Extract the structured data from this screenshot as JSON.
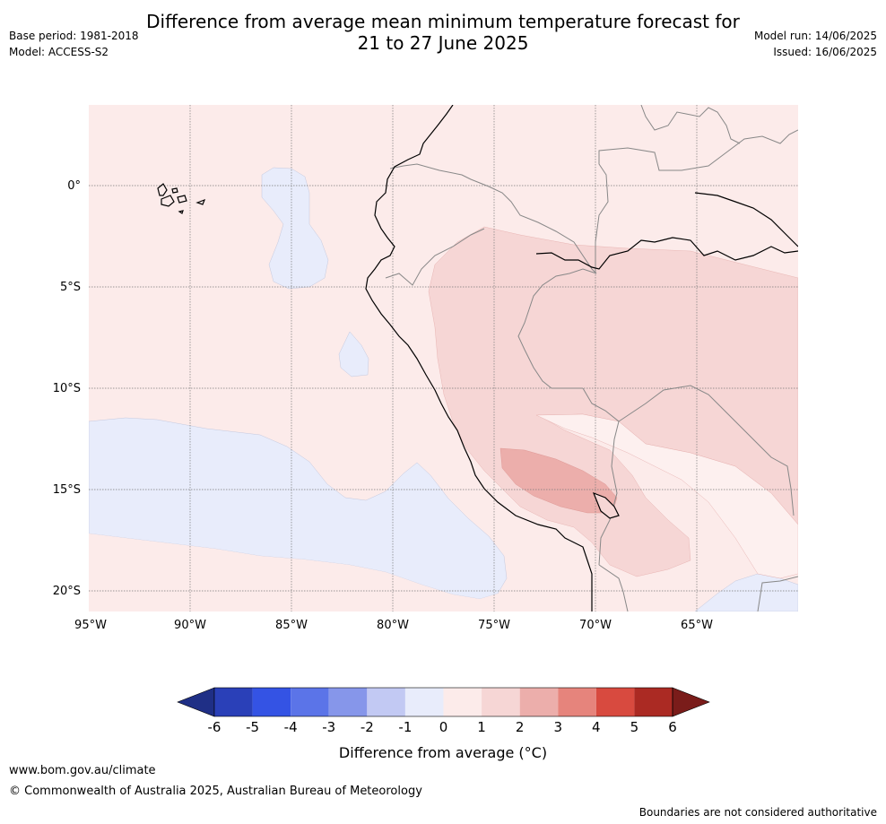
{
  "header": {
    "title_line1": "Difference from average mean minimum temperature forecast for",
    "title_line2": "21 to 27 June 2025",
    "base_period": "Base period: 1981-2018",
    "model": "Model: ACCESS-S2",
    "model_run": "Model run: 14/06/2025",
    "issued": "Issued: 16/06/2025"
  },
  "map": {
    "lat_labels": [
      "0°",
      "5°S",
      "10°S",
      "15°S",
      "20°S"
    ],
    "lon_labels": [
      "95°W",
      "90°W",
      "85°W",
      "80°W",
      "75°W",
      "70°W",
      "65°W"
    ],
    "colors": {
      "ocean_base": "#fcebea",
      "band_neg1_0": "#e8ecfb",
      "band_1_2": "#f6d6d5",
      "band_2_3": "#ecaeab",
      "band_0_1_light": "#fdf0ef",
      "coast": "#000000",
      "border": "#888888"
    }
  },
  "colorbar": {
    "ticks": [
      "-6",
      "-5",
      "-4",
      "-3",
      "-2",
      "-1",
      "0",
      "1",
      "2",
      "3",
      "4",
      "5",
      "6"
    ],
    "colors": [
      "#1f2f86",
      "#2a40b8",
      "#3453e4",
      "#5b74e8",
      "#8696ea",
      "#c2c9f3",
      "#e8ecfb",
      "#fcebea",
      "#f6d6d5",
      "#ecaeab",
      "#e6847c",
      "#d84a3f",
      "#ab2a23",
      "#7a1c1a"
    ],
    "label": "Difference from average (°C)"
  },
  "footer": {
    "url": "www.bom.gov.au/climate",
    "copyright": "© Commonwealth of Australia 2025, Australian Bureau of Meteorology",
    "disclaimer": "Boundaries are not considered authoritative"
  }
}
